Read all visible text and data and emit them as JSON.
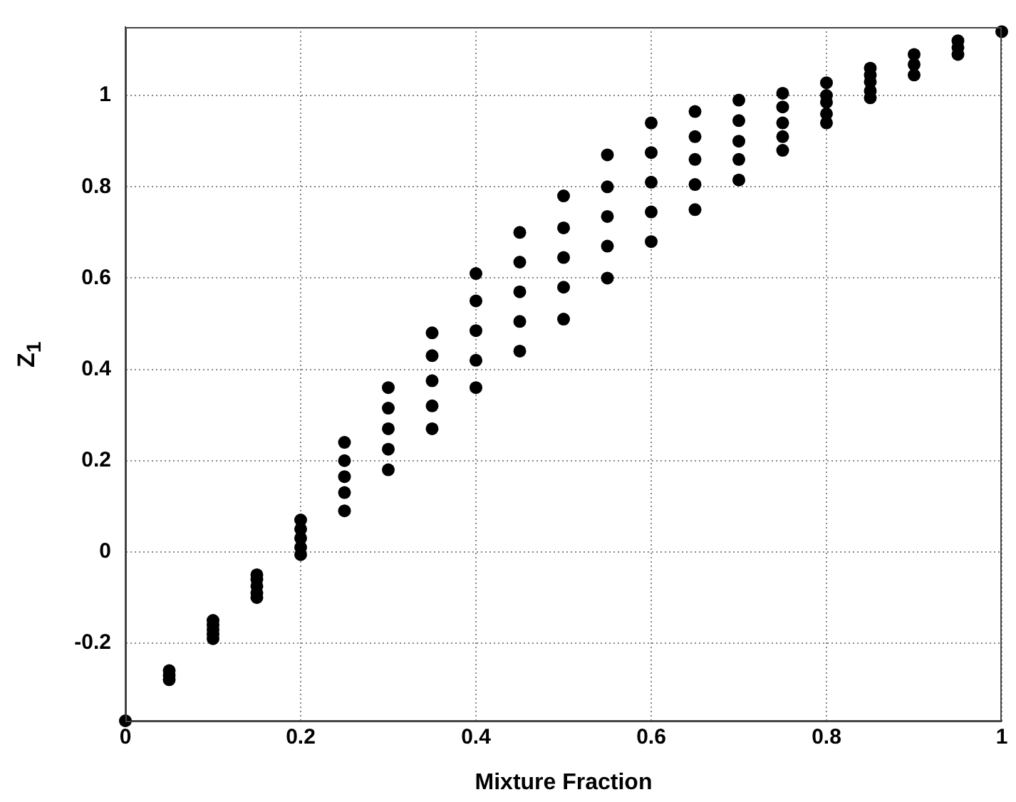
{
  "chart_data": {
    "type": "scatter",
    "xlabel": "Mixture Fraction",
    "ylabel": "Z$_{1}$",
    "color": "#000000",
    "marker": "circle",
    "grid": true,
    "legend": false,
    "xlim": [
      0,
      1
    ],
    "xticks": [
      0,
      0.2,
      0.4,
      0.6,
      0.8,
      1
    ],
    "ylim": [
      -0.37,
      1.15
    ],
    "yticks": [
      -0.2,
      0,
      0.2,
      0.4,
      0.6,
      0.8,
      1
    ],
    "x": [
      0,
      0.05,
      0.05,
      0.05,
      0.1,
      0.1,
      0.1,
      0.1,
      0.1,
      0.15,
      0.15,
      0.15,
      0.15,
      0.15,
      0.2,
      0.2,
      0.2,
      0.2,
      0.2,
      0.25,
      0.25,
      0.25,
      0.25,
      0.25,
      0.3,
      0.3,
      0.3,
      0.3,
      0.3,
      0.35,
      0.35,
      0.35,
      0.35,
      0.35,
      0.4,
      0.4,
      0.4,
      0.4,
      0.4,
      0.45,
      0.45,
      0.45,
      0.45,
      0.45,
      0.5,
      0.5,
      0.5,
      0.5,
      0.5,
      0.55,
      0.55,
      0.55,
      0.55,
      0.55,
      0.6,
      0.6,
      0.6,
      0.6,
      0.6,
      0.65,
      0.65,
      0.65,
      0.65,
      0.65,
      0.7,
      0.7,
      0.7,
      0.7,
      0.7,
      0.75,
      0.75,
      0.75,
      0.75,
      0.75,
      0.8,
      0.8,
      0.8,
      0.8,
      0.8,
      0.85,
      0.85,
      0.85,
      0.85,
      0.85,
      0.9,
      0.9,
      0.9,
      0.95,
      0.95,
      0.95,
      1
    ],
    "values": [
      -0.37,
      -0.26,
      -0.27,
      -0.28,
      -0.15,
      -0.16,
      -0.17,
      -0.18,
      -0.19,
      -0.05,
      -0.06,
      -0.075,
      -0.09,
      -0.1,
      0.07,
      0.05,
      0.03,
      0.01,
      -0.006,
      0.24,
      0.2,
      0.165,
      0.13,
      0.09,
      0.36,
      0.315,
      0.27,
      0.225,
      0.18,
      0.48,
      0.43,
      0.375,
      0.32,
      0.27,
      0.61,
      0.55,
      0.485,
      0.42,
      0.36,
      0.7,
      0.635,
      0.57,
      0.505,
      0.44,
      0.78,
      0.71,
      0.645,
      0.58,
      0.51,
      0.87,
      0.8,
      0.735,
      0.67,
      0.6,
      0.94,
      0.875,
      0.81,
      0.745,
      0.68,
      0.965,
      0.91,
      0.86,
      0.805,
      0.75,
      0.99,
      0.945,
      0.9,
      0.86,
      0.815,
      1.005,
      0.975,
      0.94,
      0.91,
      0.88,
      1.028,
      1,
      0.985,
      0.96,
      0.94,
      1.06,
      1.045,
      1.03,
      1.01,
      0.995,
      1.09,
      1.068,
      1.045,
      1.12,
      1.105,
      1.09,
      1.14
    ]
  }
}
